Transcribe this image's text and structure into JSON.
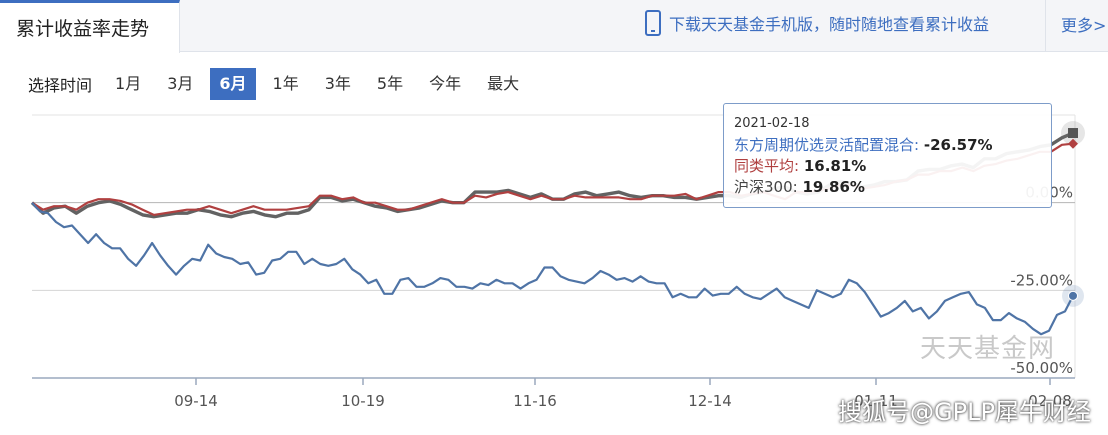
{
  "header": {
    "tab_title": "累计收益率走势",
    "promo_text": "下载天天基金手机版，随时随地查看累计收益",
    "more_label": "更多>"
  },
  "periods": {
    "label": "选择时间",
    "items": [
      "1月",
      "3月",
      "6月",
      "1年",
      "3年",
      "5年",
      "今年",
      "最大"
    ],
    "active": "6月"
  },
  "tooltip": {
    "date": "2021-02-18",
    "rows": [
      {
        "name": "东方周期优选灵活配置混合",
        "value": "-26.57%",
        "color": "#3d6ec0"
      },
      {
        "name": "同类平均",
        "value": "16.81%",
        "color": "#b04040"
      },
      {
        "name": "沪深300",
        "value": "19.86%",
        "color": "#555555"
      }
    ]
  },
  "watermark": "天天基金网",
  "credit": "搜狐号@GPLP犀牛财经",
  "chart_data": {
    "type": "line",
    "x_ticks": [
      "09-14",
      "10-19",
      "11-16",
      "12-14",
      "01-11",
      "02-08"
    ],
    "y_ticks": [
      "0.00%",
      "-25.00%",
      "-50.00%"
    ],
    "ylim": [
      -50,
      25
    ],
    "series": [
      {
        "name": "东方周期优选灵活配置混合",
        "color": "#4f74a6",
        "values": [
          0,
          -2.5,
          -3,
          -5.5,
          -7,
          -6.5,
          -9,
          -11.5,
          -9,
          -11.5,
          -13,
          -13,
          -16,
          -18,
          -15,
          -11.5,
          -15,
          -18,
          -20.5,
          -18,
          -16,
          -16.5,
          -12,
          -14.5,
          -15.5,
          -16,
          -17.5,
          -17,
          -20.5,
          -20,
          -16.5,
          -16,
          -14,
          -14,
          -17.5,
          -16,
          -17.5,
          -18,
          -17.5,
          -16,
          -19,
          -20.5,
          -23,
          -22,
          -26,
          -26,
          -22,
          -21.5,
          -24,
          -24,
          -23,
          -21.5,
          -22,
          -24,
          -24,
          -24.5,
          -23,
          -23.5,
          -22,
          -23,
          -23,
          -24.5,
          -23,
          -22,
          -18.5,
          -18.5,
          -21,
          -22,
          -22.5,
          -23,
          -21.5,
          -19.5,
          -20.5,
          -22,
          -21.5,
          -22.5,
          -21,
          -22.5,
          -23,
          -23,
          -27,
          -26,
          -27,
          -27,
          -24.5,
          -26.5,
          -26,
          -26,
          -24,
          -26,
          -27,
          -27.5,
          -26,
          -24.5,
          -27,
          -28,
          -29,
          -30,
          -25,
          -26,
          -27,
          -26,
          -22,
          -23,
          -25.5,
          -29,
          -32.5,
          -31.5,
          -30,
          -28,
          -31,
          -30,
          -33,
          -31,
          -28,
          -27,
          -26,
          -25.5,
          -29,
          -30,
          -33.5,
          -33.5,
          -31.5,
          -33,
          -34,
          -36,
          -37.5,
          -36.5,
          -32,
          -31,
          -26.57
        ]
      },
      {
        "name": "同类平均",
        "color": "#b04040",
        "values": [
          0,
          -2,
          -1,
          -1,
          -2,
          0,
          1,
          1,
          0.5,
          -0.5,
          -2,
          -3.5,
          -3,
          -2.5,
          -2,
          -2,
          -1,
          -2,
          -3,
          -2,
          -1,
          -2,
          -2,
          -2,
          -1.5,
          -1,
          2,
          2,
          1,
          1.5,
          0,
          0,
          -1,
          -2,
          -2,
          -1,
          0,
          1,
          0,
          0,
          2,
          1.5,
          2.5,
          3,
          2,
          1,
          2,
          1,
          1,
          2,
          1.5,
          1.5,
          1.5,
          1.5,
          1,
          1,
          2,
          2,
          2,
          2.5,
          1,
          2,
          3,
          3,
          2,
          2.5,
          3,
          2,
          1,
          3,
          3,
          3.5,
          4,
          5,
          5,
          4,
          4.5,
          5,
          6,
          6.5,
          8,
          8,
          9,
          9,
          10,
          9,
          10.5,
          11,
          12,
          12.5,
          13.5,
          14.5,
          14.5,
          16.5,
          16.81
        ]
      },
      {
        "name": "沪深300",
        "color": "#626262",
        "values": [
          0,
          -3,
          -1.5,
          -1,
          -3,
          -1,
          0,
          0.5,
          -0.5,
          -2,
          -3.5,
          -4,
          -3.5,
          -3,
          -3,
          -2,
          -2.5,
          -3.5,
          -4,
          -3,
          -2.5,
          -3.5,
          -4,
          -3,
          -3,
          -2,
          1.5,
          1.5,
          0.5,
          1,
          0,
          -1,
          -1.5,
          -2.5,
          -2,
          -1.5,
          -0.5,
          0.5,
          0,
          0,
          3,
          3,
          3,
          3.5,
          2.5,
          1.5,
          2.5,
          1,
          1,
          2.5,
          3,
          2,
          2.5,
          3,
          2,
          1.5,
          2,
          2,
          1.5,
          1.5,
          1,
          1.5,
          2,
          2,
          1.5,
          2.5,
          3,
          4,
          4.5,
          3,
          2.5,
          3,
          5,
          6,
          5.5,
          4.5,
          5,
          6,
          6,
          6.5,
          9,
          9.5,
          9.5,
          10.5,
          11,
          10,
          12.5,
          12.5,
          14,
          14.5,
          15,
          16,
          16.5,
          18.5,
          19.86
        ]
      }
    ]
  }
}
